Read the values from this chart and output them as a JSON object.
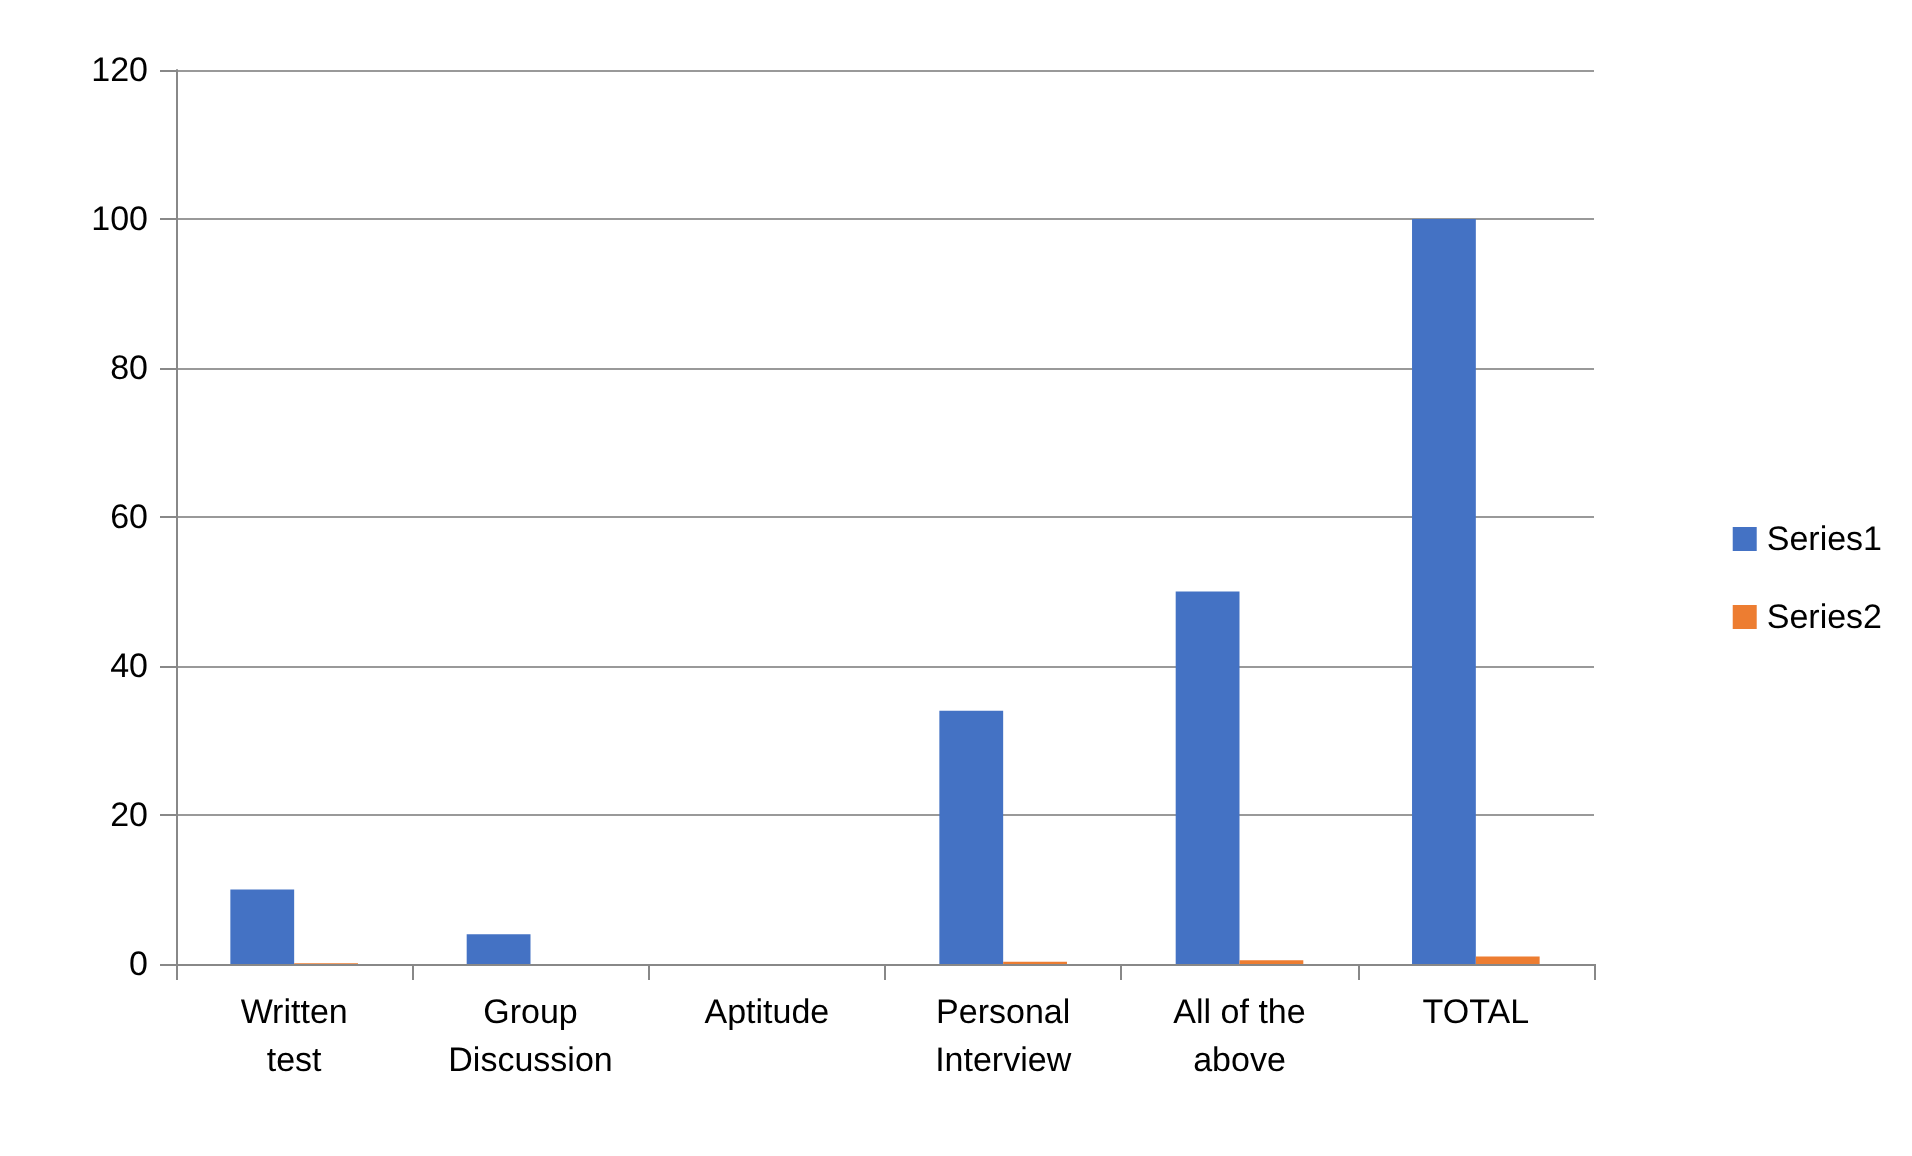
{
  "chart_data": {
    "type": "bar",
    "categories": [
      "Written test",
      "Group Discussion",
      "Aptitude",
      "Personal Interview",
      "All of the above",
      "TOTAL"
    ],
    "series": [
      {
        "name": "Series1",
        "color": "#4472c4",
        "values": [
          10,
          4,
          0,
          34,
          50,
          100
        ]
      },
      {
        "name": "Series2",
        "color": "#ed7d31",
        "values": [
          0.1,
          0,
          0,
          0.3,
          0.5,
          1
        ]
      }
    ],
    "ylim": [
      0,
      120
    ],
    "yticks": [
      0,
      20,
      40,
      60,
      80,
      100,
      120
    ],
    "grid": "y",
    "legend": "right"
  }
}
